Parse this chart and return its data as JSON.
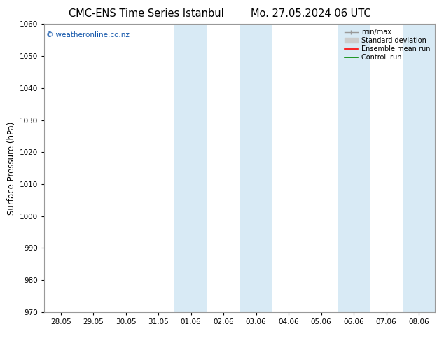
{
  "title_left": "CMC-ENS Time Series Istanbul",
  "title_right": "Mo. 27.05.2024 06 UTC",
  "ylabel": "Surface Pressure (hPa)",
  "ylim": [
    970,
    1060
  ],
  "yticks": [
    970,
    980,
    990,
    1000,
    1010,
    1020,
    1030,
    1040,
    1050,
    1060
  ],
  "x_tick_labels": [
    "28.05",
    "29.05",
    "30.05",
    "31.05",
    "01.06",
    "02.06",
    "03.06",
    "04.06",
    "05.06",
    "06.06",
    "07.06",
    "08.06"
  ],
  "x_tick_positions": [
    0,
    1,
    2,
    3,
    4,
    5,
    6,
    7,
    8,
    9,
    10,
    11
  ],
  "xlim": [
    -0.5,
    11.5
  ],
  "shaded_bands": [
    {
      "xmin": 3.5,
      "xmax": 4.5
    },
    {
      "xmin": 5.5,
      "xmax": 6.5
    },
    {
      "xmin": 8.5,
      "xmax": 9.5
    },
    {
      "xmin": 10.5,
      "xmax": 11.5
    }
  ],
  "shade_color": "#d8eaf5",
  "shade_alpha": 1.0,
  "watermark": "© weatheronline.co.nz",
  "watermark_color": "#1155aa",
  "watermark_fontsize": 7.5,
  "legend_items": [
    {
      "label": "min/max",
      "color": "#999999",
      "lw": 1.0,
      "ls": "-",
      "type": "line_capped"
    },
    {
      "label": "Standard deviation",
      "color": "#cccccc",
      "lw": 5,
      "ls": "-",
      "type": "patch"
    },
    {
      "label": "Ensemble mean run",
      "color": "#ff0000",
      "lw": 1.2,
      "ls": "-",
      "type": "line"
    },
    {
      "label": "Controll run",
      "color": "#008800",
      "lw": 1.2,
      "ls": "-",
      "type": "line"
    }
  ],
  "bg_color": "#ffffff",
  "plot_bg_color": "#ffffff",
  "spine_color": "#999999",
  "title_fontsize": 10.5,
  "axis_label_fontsize": 8.5,
  "tick_fontsize": 7.5,
  "legend_fontsize": 7
}
